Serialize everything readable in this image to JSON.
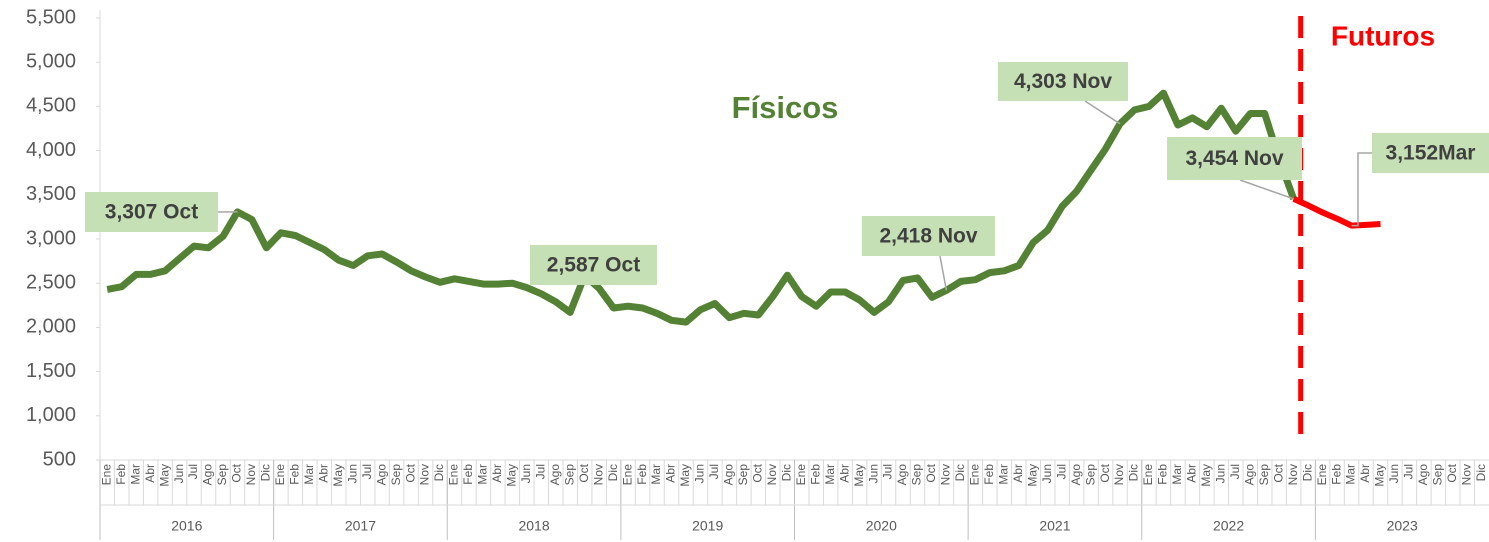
{
  "chart_data": {
    "type": "line",
    "categories": [
      "Ene",
      "Feb",
      "Mar",
      "Abr",
      "May",
      "Jun",
      "Jul",
      "Ago",
      "Sep",
      "Oct",
      "Nov",
      "Dic",
      "Ene",
      "Feb",
      "Mar",
      "Abr",
      "May",
      "Jun",
      "Jul",
      "Ago",
      "Sep",
      "Oct",
      "Nov",
      "Dic",
      "Ene",
      "Feb",
      "Mar",
      "Abr",
      "May",
      "Jun",
      "Jul",
      "Ago",
      "Sep",
      "Oct",
      "Nov",
      "Dic",
      "Ene",
      "Feb",
      "Mar",
      "Abr",
      "May",
      "Jun",
      "Jul",
      "Ago",
      "Sep",
      "Oct",
      "Nov",
      "Dic",
      "Ene",
      "Feb",
      "Mar",
      "Abr",
      "May",
      "Jun",
      "Jul",
      "Ago",
      "Sep",
      "Oct",
      "Nov",
      "Dic",
      "Ene",
      "Feb",
      "Mar",
      "Abr",
      "May",
      "Jun",
      "Jul",
      "Ago",
      "Sep",
      "Oct",
      "Nov",
      "Dic",
      "Ene",
      "Feb",
      "Mar",
      "Abr",
      "May",
      "Jun",
      "Jul",
      "Ago",
      "Sep",
      "Oct",
      "Nov",
      "Dic",
      "Ene",
      "Feb",
      "Mar",
      "Abr",
      "May",
      "Jun",
      "Jul",
      "Ago",
      "Sep",
      "Oct",
      "Nov",
      "Dic"
    ],
    "category_groups": [
      "2016",
      "2017",
      "2018",
      "2019",
      "2020",
      "2021",
      "2022",
      "2023"
    ],
    "series": [
      {
        "name": "Físicos",
        "color": "#548235",
        "values": [
          2430,
          2460,
          2600,
          2600,
          2640,
          2780,
          2920,
          2900,
          3030,
          3307,
          3220,
          2900,
          3070,
          3040,
          2960,
          2880,
          2760,
          2700,
          2810,
          2830,
          2740,
          2640,
          2570,
          2510,
          2550,
          2520,
          2490,
          2490,
          2500,
          2450,
          2380,
          2290,
          2170,
          2587,
          2440,
          2220,
          2240,
          2220,
          2160,
          2080,
          2060,
          2200,
          2270,
          2110,
          2160,
          2140,
          2350,
          2590,
          2350,
          2240,
          2400,
          2400,
          2310,
          2170,
          2290,
          2530,
          2560,
          2340,
          2418,
          2520,
          2540,
          2620,
          2640,
          2700,
          2960,
          3100,
          3370,
          3540,
          3780,
          4020,
          4303,
          4460,
          4500,
          4650,
          4290,
          4370,
          4270,
          4480,
          4220,
          4420,
          4420,
          3900,
          3454,
          null,
          null,
          null,
          null,
          null,
          null,
          null,
          null,
          null,
          null,
          null,
          null,
          null
        ]
      },
      {
        "name": "Futuros",
        "color": "#ff0000",
        "values": [
          null,
          null,
          null,
          null,
          null,
          null,
          null,
          null,
          null,
          null,
          null,
          null,
          null,
          null,
          null,
          null,
          null,
          null,
          null,
          null,
          null,
          null,
          null,
          null,
          null,
          null,
          null,
          null,
          null,
          null,
          null,
          null,
          null,
          null,
          null,
          null,
          null,
          null,
          null,
          null,
          null,
          null,
          null,
          null,
          null,
          null,
          null,
          null,
          null,
          null,
          null,
          null,
          null,
          null,
          null,
          null,
          null,
          null,
          null,
          null,
          null,
          null,
          null,
          null,
          null,
          null,
          null,
          null,
          null,
          null,
          null,
          null,
          null,
          null,
          null,
          null,
          null,
          null,
          null,
          null,
          null,
          null,
          3454,
          3380,
          3300,
          3230,
          3152,
          3160,
          3170,
          null,
          null,
          null,
          null,
          null,
          null,
          null
        ]
      }
    ],
    "annotations": [
      {
        "text": "3,307 Oct",
        "value": 3307
      },
      {
        "text": "2,587 Oct",
        "value": 2587
      },
      {
        "text": "2,418 Nov",
        "value": 2418
      },
      {
        "text": "4,303 Nov",
        "value": 4303
      },
      {
        "text": "3,454 Nov",
        "value": 3454
      },
      {
        "text": "3,152Mar",
        "value": 3152
      }
    ],
    "ylim": [
      500,
      5500
    ],
    "yticks": [
      500,
      {
        "value": 1000,
        "label": "1,000"
      },
      {
        "value": 1500,
        "label": "1,500"
      },
      {
        "value": 2000,
        "label": "2,000"
      },
      {
        "value": 2500,
        "label": "2,500"
      },
      {
        "value": 3000,
        "label": "3,000"
      },
      {
        "value": 3500,
        "label": "3,500"
      },
      {
        "value": 4000,
        "label": "4,000"
      },
      {
        "value": 4500,
        "label": "4,500"
      },
      {
        "value": 5000,
        "label": "5,000"
      },
      {
        "value": 5500,
        "label": "5,500"
      }
    ],
    "grid": false
  }
}
